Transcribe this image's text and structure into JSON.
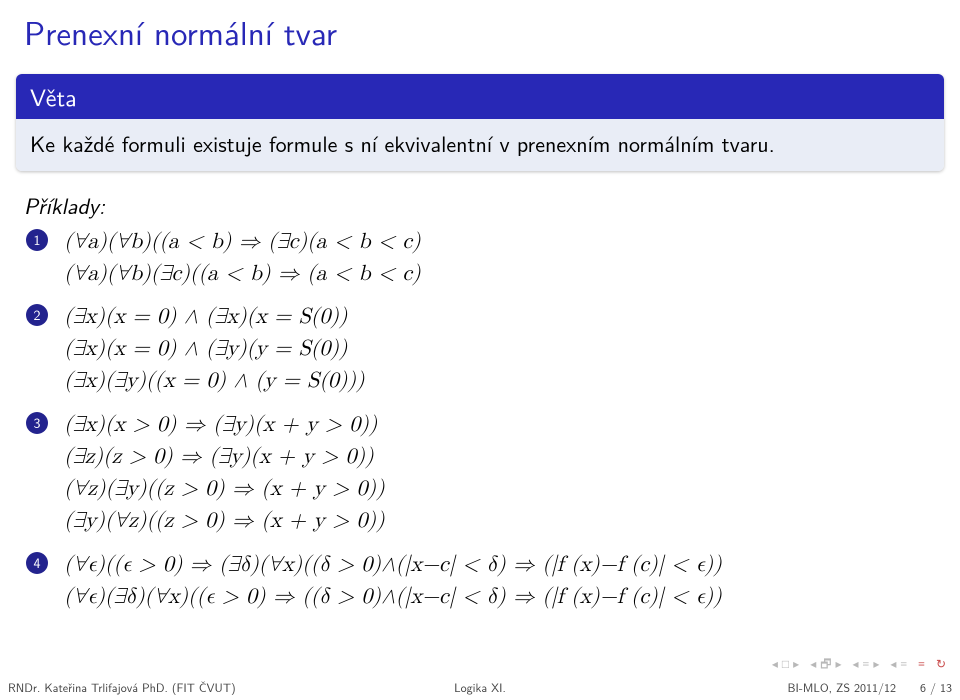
{
  "title": "Prenexní normální tvar",
  "theorem": {
    "head": "Věta",
    "body": "Ke každé formuli existuje formule s ní ekvivalentní v prenexním normálním tvaru."
  },
  "examples_label": "Příklady:",
  "items": {
    "1": {
      "a": "(∀a)(∀b)((a < b) ⇒ (∃c)(a < b < c)",
      "b": "(∀a)(∀b)(∃c)((a < b) ⇒ (a < b < c)"
    },
    "2": {
      "a": "(∃x)(x = 0) ∧ (∃x)(x = S(0))",
      "b": "(∃x)(x = 0) ∧ (∃y)(y = S(0))",
      "c": "(∃x)(∃y)((x = 0) ∧ (y = S(0)))"
    },
    "3": {
      "a": "(∃x)(x > 0) ⇒ (∃y)(x + y > 0))",
      "b": "(∃z)(z > 0) ⇒ (∃y)(x + y > 0))",
      "c": "(∀z)(∃y)((z > 0) ⇒ (x + y > 0))",
      "d": "(∃y)(∀z)((z > 0) ⇒ (x + y > 0))"
    },
    "4": {
      "a": "(∀ϵ)((ϵ > 0) ⇒ (∃δ)(∀x)((δ > 0)∧(|x−c| < δ) ⇒ (|f (x)−f (c)| < ϵ))",
      "b": "(∀ϵ)(∃δ)(∀x)((ϵ > 0) ⇒ ((δ > 0)∧(|x−c| < δ) ⇒ (|f (x)−f (c)| < ϵ))"
    }
  },
  "footer": {
    "left": "RNDr. Kateřina Trlifajová PhD. (FIT ČVUT)",
    "center": "Logika XI.",
    "right": "BI-MLO, ZS 2011/12  6 / 13"
  },
  "colors": {
    "structure": "#2828b6",
    "block_bg": "#e9edf6",
    "badge": "#23238e",
    "nav_gray": "#b8b8b8",
    "nav_accent": "#c94a4a"
  }
}
